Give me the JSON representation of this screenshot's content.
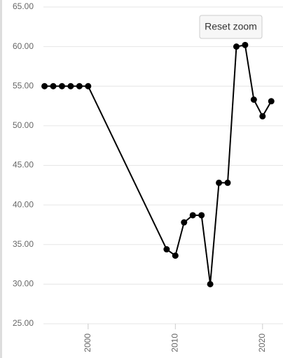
{
  "chart_data": {
    "type": "line",
    "button": "Reset zoom",
    "x": [
      1995,
      1996,
      1997,
      1998,
      1999,
      2000,
      2009,
      2010,
      2011,
      2012,
      2013,
      2014,
      2015,
      2016,
      2017,
      2018,
      2019,
      2020,
      2021
    ],
    "values": [
      55.0,
      55.0,
      55.0,
      55.0,
      55.0,
      55.0,
      34.4,
      33.6,
      37.8,
      38.7,
      38.7,
      30.0,
      42.8,
      42.8,
      60.0,
      60.2,
      53.3,
      51.2,
      53.1
    ],
    "color": "#000000",
    "xlim": [
      1994.6,
      2021.1
    ],
    "xticks": [
      2000,
      2010,
      2020
    ],
    "ylim": [
      25,
      65
    ],
    "yticks": [
      {
        "value": 25,
        "label": "25.00"
      },
      {
        "value": 30,
        "label": "30.00"
      },
      {
        "value": 35,
        "label": "35.00"
      },
      {
        "value": 40,
        "label": "40.00"
      },
      {
        "value": 45,
        "label": "45.00"
      },
      {
        "value": 50,
        "label": "50.00"
      },
      {
        "value": 55,
        "label": "55.00"
      },
      {
        "value": 60,
        "label": "60.00"
      },
      {
        "value": 65,
        "label": "65.00"
      }
    ],
    "grid": true
  }
}
